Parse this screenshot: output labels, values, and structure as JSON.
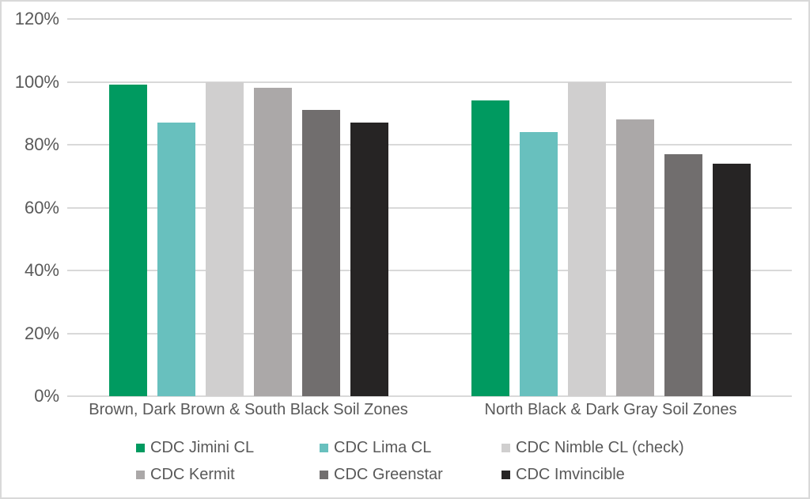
{
  "chart_data": {
    "type": "bar",
    "title": "",
    "xlabel": "",
    "ylabel": "",
    "ylim": [
      0,
      120
    ],
    "ytick_step": 20,
    "ytick_labels": [
      "0%",
      "20%",
      "40%",
      "60%",
      "80%",
      "100%",
      "120%"
    ],
    "grid": true,
    "legend_position": "bottom",
    "legend_columns": 3,
    "categories": [
      "Brown, Dark Brown & South Black Soil Zones",
      "North Black & Dark Gray Soil Zones"
    ],
    "series": [
      {
        "name": "CDC Jimini CL",
        "color": "#009A60",
        "values": [
          99,
          94
        ]
      },
      {
        "name": "CDC Lima CL",
        "color": "#68C0BE",
        "values": [
          87,
          84
        ]
      },
      {
        "name": "CDC Nimble CL (check)",
        "color": "#D0CFCF",
        "values": [
          100,
          100
        ]
      },
      {
        "name": "CDC Kermit",
        "color": "#ABA8A8",
        "values": [
          98,
          88
        ]
      },
      {
        "name": "CDC Greenstar",
        "color": "#716E6E",
        "values": [
          91,
          77
        ]
      },
      {
        "name": "CDC Imvincible",
        "color": "#262424",
        "values": [
          87,
          74
        ]
      }
    ]
  },
  "colors": {
    "background": "#FFFFFF",
    "gridline": "#D9D9D9",
    "border": "#D9D9D9",
    "axis_text": "#595959"
  }
}
